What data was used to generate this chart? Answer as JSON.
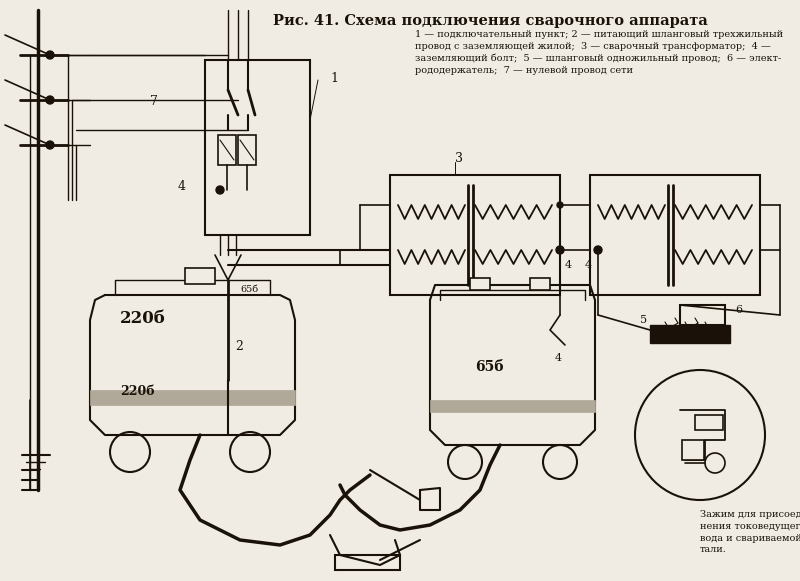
{
  "title": "Рис. 41. Схема подключения сварочного аппарата",
  "legend_text": "1 — подключательный пункт; 2 — питающий шланговый трехжильный\nпровод с заземляющей жилой;  3 — сварочный трансформатор;  4 —\nзаземляющий болт;  5 — шланговый одножильный провод;  6 — элект-\nрододержатель;  7 — нулевой провод сети",
  "bottom_text": "Зажим для присоеди-\nнения токоведущего про-\nвода и свариваемой де-\nтали.",
  "bg_color": "#d4cfc5",
  "fg_color": "#1a1208",
  "figure_width": 8.0,
  "figure_height": 5.81,
  "dpi": 100
}
